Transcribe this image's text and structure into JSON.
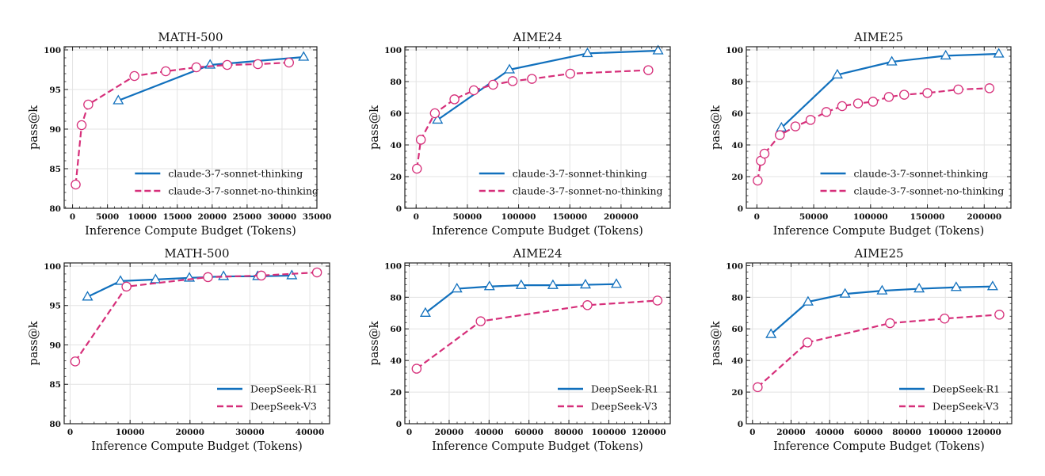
{
  "colors": {
    "series_a": "#1170bd",
    "series_b": "#d62f7a",
    "grid": "#e3e3e3",
    "frame": "#222222"
  },
  "chart_data": [
    {
      "type": "line",
      "title": "MATH-500",
      "xlabel": "Inference Compute Budget (Tokens)",
      "ylabel": "pass@k",
      "xlim": [
        -1200,
        35000
      ],
      "ylim": [
        80,
        100.4
      ],
      "xticks": [
        0,
        5000,
        10000,
        15000,
        20000,
        25000,
        30000,
        35000
      ],
      "yticks": [
        80,
        85,
        90,
        95,
        100
      ],
      "grid": true,
      "legend": "lower-right",
      "series": [
        {
          "name": "claude-3-7-sonnet-thinking",
          "style": "solid",
          "marker": "triangle",
          "x": [
            6550,
            19700,
            33100
          ],
          "y": [
            93.6,
            98.1,
            99.1
          ]
        },
        {
          "name": "claude-3-7-sonnet-no-thinking",
          "style": "dashed",
          "marker": "circle",
          "x": [
            450,
            1300,
            2250,
            8860,
            13350,
            17730,
            22150,
            26550,
            31000
          ],
          "y": [
            83.0,
            90.5,
            93.1,
            96.7,
            97.3,
            97.8,
            98.1,
            98.2,
            98.4
          ]
        }
      ]
    },
    {
      "type": "line",
      "title": "AIME24",
      "xlabel": "Inference Compute Budget (Tokens)",
      "ylabel": "pass@k",
      "xlim": [
        -11000,
        248000
      ],
      "ylim": [
        0,
        102
      ],
      "xticks": [
        0,
        50000,
        100000,
        150000,
        200000
      ],
      "yticks": [
        0,
        20,
        40,
        60,
        80,
        100
      ],
      "grid": true,
      "legend": "lower-right",
      "series": [
        {
          "name": "claude-3-7-sonnet-thinking",
          "style": "solid",
          "marker": "triangle",
          "x": [
            20900,
            91100,
            167200,
            236100
          ],
          "y": [
            55.8,
            87.5,
            97.8,
            99.5
          ]
        },
        {
          "name": "claude-3-7-sonnet-no-thinking",
          "style": "dashed",
          "marker": "circle",
          "x": [
            800,
            4600,
            18300,
            37400,
            56300,
            75100,
            94200,
            113000,
            150400,
            226600
          ],
          "y": [
            25.0,
            43.3,
            60.0,
            68.8,
            74.5,
            78.0,
            80.3,
            81.7,
            85.0,
            87.2
          ]
        }
      ]
    },
    {
      "type": "line",
      "title": "AIME25",
      "xlabel": "Inference Compute Budget (Tokens)",
      "ylabel": "pass@k",
      "xlim": [
        -9300,
        223500
      ],
      "ylim": [
        0,
        102
      ],
      "xticks": [
        0,
        50000,
        100000,
        150000,
        200000
      ],
      "yticks": [
        0,
        20,
        40,
        60,
        80,
        100
      ],
      "grid": true,
      "legend": "lower-right",
      "series": [
        {
          "name": "claude-3-7-sonnet-thinking",
          "style": "solid",
          "marker": "triangle",
          "x": [
            21600,
            70800,
            118700,
            166100,
            212800
          ],
          "y": [
            50.8,
            84.3,
            92.5,
            96.3,
            97.5
          ]
        },
        {
          "name": "claude-3-7-sonnet-no-thinking",
          "style": "dashed",
          "marker": "circle",
          "x": [
            700,
            3500,
            6700,
            20200,
            33900,
            47200,
            61100,
            75000,
            89000,
            102200,
            116100,
            129600,
            150000,
            177200,
            204600
          ],
          "y": [
            17.5,
            30.0,
            34.5,
            46.2,
            51.7,
            55.8,
            60.8,
            64.5,
            66.2,
            67.3,
            70.3,
            71.7,
            72.8,
            75.0,
            75.8
          ]
        }
      ]
    },
    {
      "type": "line",
      "title": "MATH-500",
      "xlabel": "Inference Compute Budget (Tokens)",
      "ylabel": "pass@k",
      "xlim": [
        -1000,
        43300
      ],
      "ylim": [
        80,
        100.4
      ],
      "xticks": [
        0,
        10000,
        20000,
        30000,
        40000
      ],
      "yticks": [
        80,
        85,
        90,
        95,
        100
      ],
      "grid": true,
      "legend": "lower-right",
      "series": [
        {
          "name": "DeepSeek-R1",
          "style": "solid",
          "marker": "triangle",
          "x": [
            2900,
            8400,
            14250,
            19900,
            25600,
            31300,
            37000
          ],
          "y": [
            96.1,
            98.1,
            98.3,
            98.5,
            98.7,
            98.7,
            98.8
          ]
        },
        {
          "name": "DeepSeek-V3",
          "style": "dashed",
          "marker": "circle",
          "x": [
            840,
            9400,
            23000,
            31900,
            41200
          ],
          "y": [
            87.9,
            97.4,
            98.6,
            98.8,
            99.2
          ]
        }
      ]
    },
    {
      "type": "line",
      "title": "AIME24",
      "xlabel": "Inference Compute Budget (Tokens)",
      "ylabel": "pass@k",
      "xlim": [
        -2200,
        130800
      ],
      "ylim": [
        0,
        101.7
      ],
      "xticks": [
        0,
        20000,
        40000,
        60000,
        80000,
        100000,
        120000
      ],
      "yticks": [
        0,
        20,
        40,
        60,
        80,
        100
      ],
      "grid": true,
      "legend": "lower-right",
      "series": [
        {
          "name": "DeepSeek-R1",
          "style": "solid",
          "marker": "triangle",
          "x": [
            8100,
            23900,
            40200,
            56100,
            72000,
            88300,
            103800
          ],
          "y": [
            70.0,
            85.4,
            86.8,
            87.6,
            87.6,
            87.9,
            88.3
          ]
        },
        {
          "name": "DeepSeek-V3",
          "style": "dashed",
          "marker": "circle",
          "x": [
            3700,
            35800,
            89300,
            124400
          ],
          "y": [
            34.8,
            64.8,
            75.0,
            77.9
          ]
        }
      ]
    },
    {
      "type": "line",
      "title": "AIME25",
      "xlabel": "Inference Compute Budget (Tokens)",
      "ylabel": "pass@k",
      "xlim": [
        -3200,
        134400
      ],
      "ylim": [
        0,
        101.7
      ],
      "xticks": [
        0,
        20000,
        40000,
        60000,
        80000,
        100000,
        120000
      ],
      "yticks": [
        0,
        20,
        40,
        60,
        80,
        100
      ],
      "grid": true,
      "legend": "lower-right",
      "series": [
        {
          "name": "DeepSeek-R1",
          "style": "solid",
          "marker": "triangle",
          "x": [
            9600,
            28800,
            48000,
            67200,
            86400,
            105600,
            124500
          ],
          "y": [
            56.6,
            77.1,
            82.1,
            84.1,
            85.4,
            86.3,
            86.8
          ]
        },
        {
          "name": "DeepSeek-V3",
          "style": "dashed",
          "marker": "circle",
          "x": [
            2700,
            28500,
            71300,
            99600,
            128000
          ],
          "y": [
            23.1,
            51.4,
            63.6,
            66.5,
            69.0
          ]
        }
      ]
    }
  ]
}
